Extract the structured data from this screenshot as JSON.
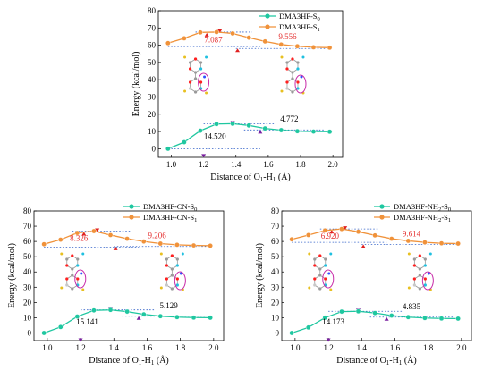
{
  "colors": {
    "s0": "#1fc7a0",
    "s1": "#f0923a",
    "s1_label": "#e53030",
    "s0_label": "#000000",
    "marker": "#7a1fa0",
    "dotted": "#3060c8",
    "triangle_red": "#e02020",
    "ring": "#c82aa8"
  },
  "chart_data": [
    {
      "type": "line",
      "xlabel": "Distance of O1-H1 (Å)",
      "ylabel": "Energy (kcal/mol)",
      "xlim": [
        0.92,
        2.06
      ],
      "ylim": [
        -5,
        80
      ],
      "xticks": [
        "1.0",
        "1.2",
        "1.4",
        "1.6",
        "1.8",
        "2.0"
      ],
      "yticks": [
        "0",
        "10",
        "20",
        "30",
        "40",
        "50",
        "60",
        "70",
        "80"
      ],
      "legend_position": "top-right",
      "x": [
        0.98,
        1.08,
        1.18,
        1.28,
        1.38,
        1.48,
        1.58,
        1.68,
        1.78,
        1.88,
        1.98
      ],
      "series": [
        {
          "name": "DMA3HF-S0",
          "label_main": "DMA3HF-S",
          "label_sub": "0",
          "values": [
            0.0,
            3.8,
            10.5,
            14.3,
            14.5,
            13.5,
            11.8,
            10.8,
            10.2,
            10.0,
            9.9
          ]
        },
        {
          "name": "DMA3HF-S1",
          "label_main": "DMA3HF-S",
          "label_sub": "1",
          "values": [
            61.2,
            64.0,
            67.4,
            67.6,
            66.8,
            64.4,
            62.2,
            60.4,
            59.4,
            58.8,
            58.6
          ]
        }
      ],
      "annotations": [
        {
          "text": "7.087",
          "series": "s1",
          "x": 1.26,
          "y": 61.5
        },
        {
          "text": "9.556",
          "series": "s1",
          "x": 1.72,
          "y": 63.5
        },
        {
          "text": "14.520",
          "series": "s0",
          "x": 1.27,
          "y": 5.5
        },
        {
          "text": "4.772",
          "series": "s0",
          "x": 1.73,
          "y": 15.8
        }
      ]
    },
    {
      "type": "line",
      "xlabel": "Distance of O1-H1 (Å)",
      "ylabel": "Energy (kcal/mol)",
      "xlim": [
        0.92,
        2.06
      ],
      "ylim": [
        -5,
        80
      ],
      "xticks": [
        "1.0",
        "1.2",
        "1.4",
        "1.6",
        "1.8",
        "2.0"
      ],
      "yticks": [
        "0",
        "10",
        "20",
        "30",
        "40",
        "50",
        "60",
        "70",
        "80"
      ],
      "legend_position": "top-right",
      "x": [
        0.98,
        1.08,
        1.18,
        1.28,
        1.38,
        1.48,
        1.58,
        1.68,
        1.78,
        1.88,
        1.98
      ],
      "series": [
        {
          "name": "DMA3HF-CN-S0",
          "label_main": "DMA3HF-CN-S",
          "label_sub": "0",
          "values": [
            0.0,
            3.9,
            10.8,
            14.8,
            15.1,
            14.0,
            12.2,
            11.0,
            10.4,
            10.1,
            10.0
          ]
        },
        {
          "name": "DMA3HF-CN-S1",
          "label_main": "DMA3HF-CN-S",
          "label_sub": "1",
          "values": [
            58.2,
            61.2,
            65.6,
            66.8,
            64.2,
            61.8,
            60.0,
            58.6,
            57.8,
            57.4,
            57.2
          ]
        }
      ],
      "annotations": [
        {
          "text": "8.326",
          "series": "s1",
          "x": 1.19,
          "y": 60.5
        },
        {
          "text": "9.206",
          "series": "s1",
          "x": 1.66,
          "y": 62.0
        },
        {
          "text": "15.141",
          "series": "s0",
          "x": 1.24,
          "y": 5.5
        },
        {
          "text": "5.129",
          "series": "s0",
          "x": 1.73,
          "y": 16.0
        }
      ]
    },
    {
      "type": "line",
      "xlabel": "Distance of O1-H1 (Å)",
      "ylabel": "Energy (kcal/mol)",
      "xlim": [
        0.92,
        2.06
      ],
      "ylim": [
        -5,
        80
      ],
      "xticks": [
        "1.0",
        "1.2",
        "1.4",
        "1.6",
        "1.8",
        "2.0"
      ],
      "yticks": [
        "0",
        "10",
        "20",
        "30",
        "40",
        "50",
        "60",
        "70",
        "80"
      ],
      "legend_position": "top-right",
      "x": [
        0.98,
        1.08,
        1.18,
        1.28,
        1.38,
        1.48,
        1.58,
        1.68,
        1.78,
        1.88,
        1.98
      ],
      "series": [
        {
          "name": "DMA3HF-NH2-S0",
          "label_main": "DMA3HF-NH",
          "label_mid": "2",
          "label_tail": "-S",
          "label_sub": "0",
          "values": [
            0.0,
            3.6,
            10.0,
            14.0,
            14.2,
            13.1,
            11.4,
            10.4,
            9.8,
            9.5,
            9.4
          ]
        },
        {
          "name": "DMA3HF-NH2-S1",
          "label_main": "DMA3HF-NH",
          "label_mid": "2",
          "label_tail": "-S",
          "label_sub": "1",
          "values": [
            61.4,
            64.2,
            67.2,
            68.2,
            66.4,
            64.0,
            61.8,
            60.4,
            59.4,
            58.8,
            58.6
          ]
        }
      ],
      "annotations": [
        {
          "text": "6.920",
          "series": "s1",
          "x": 1.21,
          "y": 61.8
        },
        {
          "text": "9.614",
          "series": "s1",
          "x": 1.7,
          "y": 63.2
        },
        {
          "text": "14.173",
          "series": "s0",
          "x": 1.23,
          "y": 5.5
        },
        {
          "text": "4.835",
          "series": "s0",
          "x": 1.7,
          "y": 15.6
        }
      ]
    }
  ]
}
